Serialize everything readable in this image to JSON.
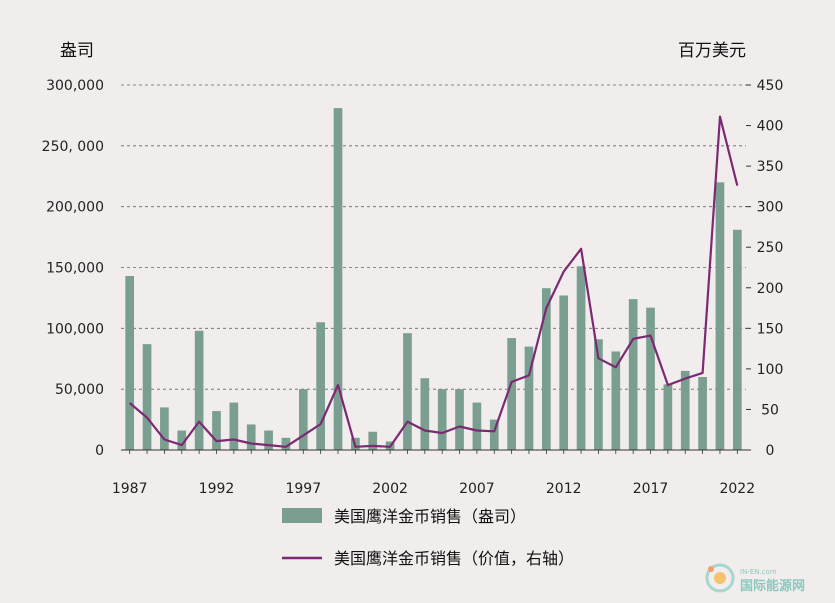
{
  "chart_data": {
    "type": "bar",
    "title": "",
    "left_unit": "盎司",
    "right_unit": "百万美元",
    "x": [
      1987,
      1988,
      1989,
      1990,
      1991,
      1992,
      1993,
      1994,
      1995,
      1996,
      1997,
      1998,
      1999,
      2000,
      2001,
      2002,
      2003,
      2004,
      2005,
      2006,
      2007,
      2008,
      2009,
      2010,
      2011,
      2012,
      2013,
      2014,
      2015,
      2016,
      2017,
      2018,
      2019,
      2020,
      2021,
      2022
    ],
    "x_tick_labels": [
      "1987",
      "1992",
      "1997",
      "2002",
      "2007",
      "2012",
      "2017",
      "2022"
    ],
    "y_left": {
      "range": [
        0,
        300000
      ],
      "ticks": [
        "0",
        "50,000",
        "100,000",
        "150,000",
        "200,000",
        "250, 000",
        "300,000"
      ]
    },
    "y_right": {
      "range": [
        0,
        450
      ],
      "ticks": [
        "0",
        "50",
        "100",
        "150",
        "200",
        "250",
        "300",
        "350",
        "400",
        "450"
      ]
    },
    "grid": "horizontal dashed",
    "legend_placement": "bottom",
    "series": [
      {
        "name": "美国鹰洋金币销售（盎司）",
        "type": "bar",
        "axis": "left",
        "color": "#7a9e8f",
        "values": [
          143000,
          87000,
          35000,
          16000,
          98000,
          32000,
          39000,
          21000,
          16000,
          10000,
          50000,
          105000,
          281000,
          10000,
          15000,
          7000,
          96000,
          59000,
          50000,
          50000,
          39000,
          25000,
          92000,
          85000,
          133000,
          127000,
          151000,
          91000,
          81000,
          124000,
          117000,
          54000,
          65000,
          60000,
          220000,
          181000
        ]
      },
      {
        "name": "美国鹰洋金币销售（价值，右轴）",
        "type": "line",
        "axis": "right",
        "color": "#7b2a72",
        "values": [
          58,
          40,
          13,
          6,
          35,
          11,
          13,
          8,
          6,
          4,
          18,
          32,
          80,
          4,
          5,
          4,
          35,
          24,
          21,
          29,
          24,
          23,
          84,
          92,
          175,
          220,
          248,
          113,
          102,
          137,
          141,
          80,
          88,
          95,
          411,
          326
        ]
      }
    ]
  },
  "watermark": {
    "brand_en": "IN-EN.com",
    "brand_cn": "国际能源网"
  }
}
